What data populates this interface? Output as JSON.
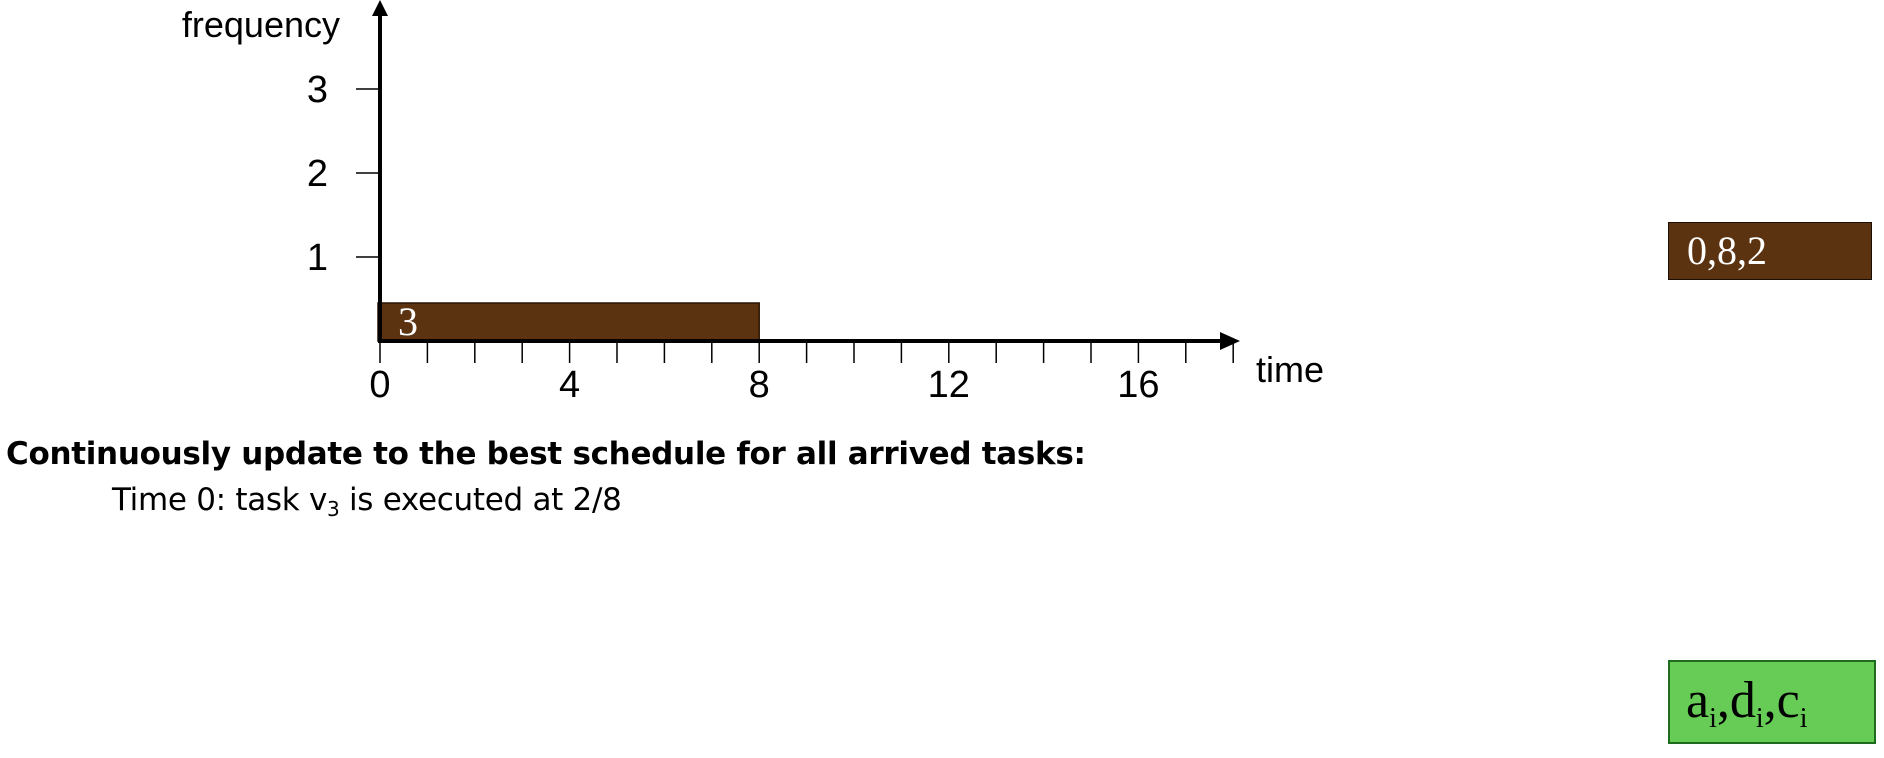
{
  "chart_data": {
    "type": "bar",
    "xlabel": "time",
    "ylabel": "frequency",
    "x_ticks": [
      "0",
      "4",
      "8",
      "12",
      "16"
    ],
    "y_ticks": [
      "1",
      "2",
      "3"
    ],
    "xlim": [
      0,
      19
    ],
    "ylim": [
      0,
      3
    ],
    "bars": [
      {
        "start": 0,
        "end": 8,
        "frequency": 0.25,
        "label": "3",
        "color": "#5c3311"
      }
    ]
  },
  "text": {
    "heading": "Continuously update to the best schedule for all arrived tasks:",
    "line_prefix": "Time 0: task v",
    "line_sub": "3",
    "line_suffix": " is executed at 2/8"
  },
  "task_box": {
    "label": "0,8,2",
    "color": "#5c3311"
  },
  "legend_box": {
    "a": "a",
    "d": "d",
    "c": "c",
    "sub": "i",
    "sep": ",",
    "color": "#66cc55"
  }
}
